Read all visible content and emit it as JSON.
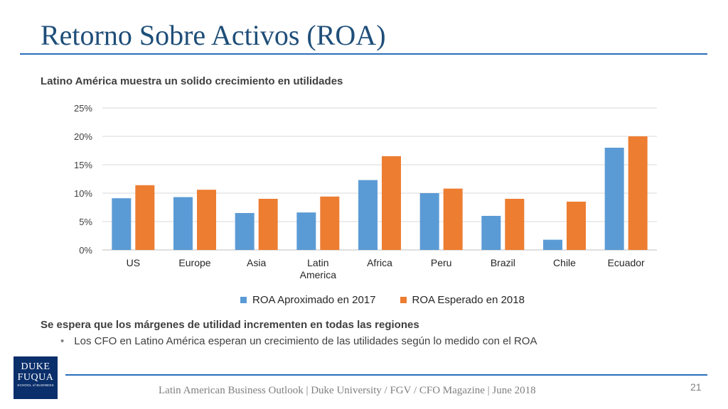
{
  "slide": {
    "title": "Retorno Sobre Activos (ROA)",
    "subtitle": "Latino América muestra un solido crecimiento en utilidades",
    "point": "Se espera que los márgenes de utilidad incrementen en todas las regiones",
    "bullet": "Los CFO en Latino América esperan un crecimiento de las utilidades según lo medido con el ROA",
    "bullet_marker": "•",
    "footer": "Latin American Business Outlook | Duke University / FGV / CFO Magazine | June 2018",
    "page_number": "21",
    "logo": {
      "line1": "DUKE",
      "line2": "FUQUA",
      "line3": "SCHOOL of BUSINESS"
    }
  },
  "colors": {
    "title": "#1f4e79",
    "rule": "#2a6ebb",
    "series_2017": "#5b9bd5",
    "series_2018": "#ed7d31",
    "logo_bg": "#0b2f6b"
  },
  "chart_data": {
    "type": "bar",
    "categories": [
      "US",
      "Europe",
      "Asia",
      "Latin America",
      "Africa",
      "Peru",
      "Brazil",
      "Chile",
      "Ecuador"
    ],
    "series": [
      {
        "name": "ROA Aproximado en 2017",
        "color": "#5b9bd5",
        "values": [
          9.1,
          9.3,
          6.5,
          6.6,
          12.3,
          10.0,
          6.0,
          1.8,
          18.0
        ]
      },
      {
        "name": "ROA Esperado en 2018",
        "color": "#ed7d31",
        "values": [
          11.4,
          10.6,
          9.0,
          9.4,
          16.5,
          10.8,
          9.0,
          8.5,
          20.0
        ]
      }
    ],
    "ylim": [
      0,
      25
    ],
    "yticks": [
      "0%",
      "5%",
      "10%",
      "15%",
      "20%",
      "25%"
    ],
    "grid": true,
    "legend_position": "bottom"
  }
}
